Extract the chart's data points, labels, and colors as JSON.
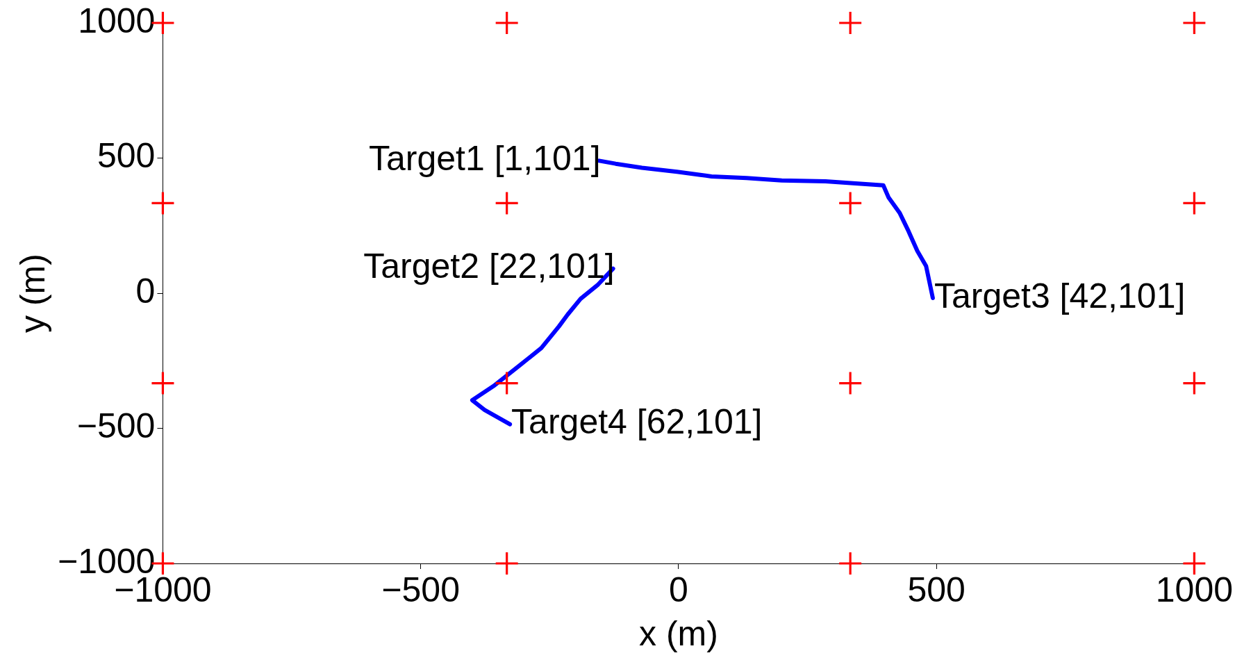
{
  "chart_data": {
    "type": "scatter",
    "xlabel": "x (m)",
    "ylabel": "y (m)",
    "xlim": [
      -1000,
      1000
    ],
    "ylim": [
      -1000,
      1000
    ],
    "xticks": [
      -1000,
      -500,
      0,
      500,
      1000
    ],
    "yticks": [
      -1000,
      -500,
      0,
      500,
      1000
    ],
    "grid": false,
    "legend": false,
    "line_style": "solid",
    "series": [
      {
        "type": "line",
        "color": "#0000ff",
        "marker": "none",
        "x": [
          -154,
          -122,
          -71,
          -3,
          64,
          132,
          200,
          285,
          353,
          397,
          407,
          429,
          446,
          463,
          480,
          493
        ],
        "values": [
          490,
          479,
          464,
          449,
          432,
          426,
          417,
          414,
          405,
          399,
          355,
          296,
          229,
          156,
          100,
          -18
        ]
      },
      {
        "type": "line",
        "color": "#0000ff",
        "marker": "none",
        "x": [
          -127,
          -156,
          -190,
          -215,
          -232,
          -266,
          -308,
          -359,
          -400,
          -376,
          -327
        ],
        "values": [
          91,
          32,
          -21,
          -79,
          -123,
          -203,
          -267,
          -344,
          -396,
          -432,
          -485
        ]
      },
      {
        "color": "#ff0000",
        "marker": "cross",
        "x": [
          -1000,
          -333,
          333,
          1000,
          -1000,
          -333,
          333,
          1000,
          -1000,
          -333,
          333,
          1000,
          -1000,
          -333,
          333,
          1000
        ],
        "values": [
          1000,
          1000,
          1000,
          1000,
          333,
          333,
          333,
          333,
          -333,
          -333,
          -333,
          -333,
          -1000,
          -1000,
          -1000,
          -1000
        ]
      }
    ],
    "annotations": [
      {
        "text": "Target1 [1,101]",
        "x": -154,
        "y": 490
      },
      {
        "text": "Target2 [22,101]",
        "x": -127,
        "y": 91
      },
      {
        "text": "Target3 [42,101]",
        "x": 493,
        "y": -18
      },
      {
        "text": "Target4 [62,101]",
        "x": -327,
        "y": -485
      }
    ]
  }
}
